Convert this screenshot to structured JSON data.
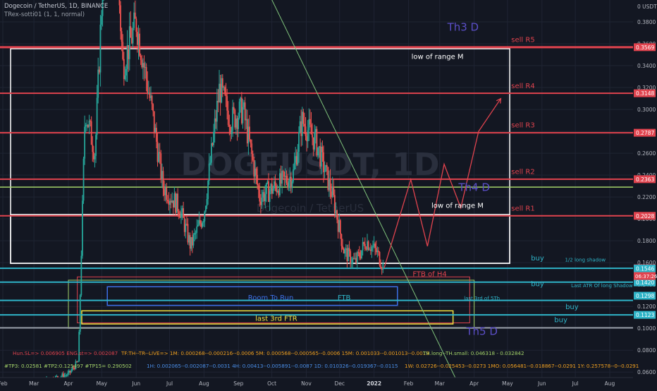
{
  "header": {
    "symbol_line": "Dogecoin / TetherUS, 1D, BINANCE",
    "indicator_line": "TRex-sotti01 (1, 1, normal)"
  },
  "watermark": {
    "big": "DOGEUSDT, 1D",
    "small": "Dogecoin / TetherUS"
  },
  "colors": {
    "background": "#131722",
    "grid": "#1f2433",
    "axis_text": "#b2b5be",
    "sell_line": "#e0434e",
    "buy_line": "#2fb4c8",
    "green_line": "#a4d46a",
    "gray_line": "#9aa0aa",
    "candle_up": "#26a69a",
    "candle_down": "#ef5350",
    "projection": "#e0434e",
    "trend_line": "#7fc27b"
  },
  "chart_data": {
    "type": "candlestick",
    "title": "Dogecoin / TetherUS, 1D, BINANCE",
    "currency": "USDT",
    "ylim": [
      0.055,
      0.4
    ],
    "y_ticks": [
      0.06,
      0.08,
      0.1,
      0.12,
      0.14,
      0.16,
      0.18,
      0.2,
      0.22,
      0.24,
      0.26,
      0.28,
      0.3,
      0.32,
      0.34,
      0.36,
      0.38
    ],
    "y_axis_top_label": "0 USDT",
    "x_ticks": [
      "Feb",
      "Mar",
      "Apr",
      "May",
      "Jun",
      "Jul",
      "Aug",
      "Sep",
      "Oct",
      "Nov",
      "Dec",
      "2022",
      "Feb",
      "Mar",
      "Apr",
      "May",
      "Jun",
      "Jul",
      "Aug"
    ],
    "x_tick_dates": [
      "2021-02-01",
      "2021-03-01",
      "2021-04-01",
      "2021-05-01",
      "2021-06-01",
      "2021-07-01",
      "2021-08-01",
      "2021-09-01",
      "2021-10-01",
      "2021-11-01",
      "2021-12-01",
      "2022-01-01",
      "2022-02-01",
      "2022-03-01",
      "2022-04-01",
      "2022-05-01",
      "2022-06-01",
      "2022-07-01",
      "2022-08-01"
    ],
    "price_path": [
      [
        "2021-02-01",
        0.032
      ],
      [
        "2021-03-01",
        0.05
      ],
      [
        "2021-04-01",
        0.058
      ],
      [
        "2021-04-10",
        0.07
      ],
      [
        "2021-04-16",
        0.3
      ],
      [
        "2021-04-25",
        0.26
      ],
      [
        "2021-05-08",
        0.56
      ],
      [
        "2021-05-20",
        0.34
      ],
      [
        "2021-06-01",
        0.38
      ],
      [
        "2021-06-15",
        0.3
      ],
      [
        "2021-06-25",
        0.23
      ],
      [
        "2021-07-10",
        0.21
      ],
      [
        "2021-07-20",
        0.175
      ],
      [
        "2021-08-01",
        0.205
      ],
      [
        "2021-08-15",
        0.32
      ],
      [
        "2021-08-25",
        0.29
      ],
      [
        "2021-09-05",
        0.3
      ],
      [
        "2021-09-20",
        0.22
      ],
      [
        "2021-10-05",
        0.23
      ],
      [
        "2021-10-20",
        0.24
      ],
      [
        "2021-10-28",
        0.29
      ],
      [
        "2021-11-10",
        0.27
      ],
      [
        "2021-11-25",
        0.22
      ],
      [
        "2021-12-05",
        0.17
      ],
      [
        "2021-12-15",
        0.16
      ],
      [
        "2021-12-25",
        0.18
      ],
      [
        "2022-01-03",
        0.17
      ],
      [
        "2022-01-10",
        0.155
      ]
    ],
    "projection_path": [
      [
        "2022-01-10",
        0.155
      ],
      [
        "2022-02-03",
        0.236
      ],
      [
        "2022-02-18",
        0.175
      ],
      [
        "2022-03-05",
        0.25
      ],
      [
        "2022-03-20",
        0.21
      ],
      [
        "2022-04-05",
        0.28
      ],
      [
        "2022-04-25",
        0.31
      ]
    ],
    "trend_line": [
      [
        "2021-09-12",
        0.44
      ],
      [
        "2022-03-15",
        0.055
      ]
    ],
    "price_labels": [
      {
        "value": 0.3569,
        "label": "0.3569",
        "color": "#e0434e"
      },
      {
        "value": 0.3148,
        "label": "0.3148",
        "color": "#e0434e"
      },
      {
        "value": 0.2787,
        "label": "0.2787",
        "color": "#e0434e"
      },
      {
        "value": 0.2363,
        "label": "0.2363",
        "color": "#e0434e"
      },
      {
        "value": 0.2028,
        "label": "0.2028",
        "color": "#e0434e"
      },
      {
        "value": 0.1549,
        "label": "0.1549",
        "color": "#e0434e"
      },
      {
        "value": 0.1546,
        "label": "0.1546",
        "color": "#2fb4c8"
      },
      {
        "value": 0.1423,
        "label": "0.1423",
        "color": "#2fb4c8"
      },
      {
        "value": 0.142,
        "label": "0.1420",
        "color": "#2fb4c8"
      },
      {
        "value": 0.1298,
        "label": "0.1298",
        "color": "#2fb4c8"
      },
      {
        "value": 0.1123,
        "label": "0.1123",
        "color": "#2fb4c8"
      }
    ],
    "countdown_label": "06:37:26",
    "h_lines": [
      {
        "value": 0.3569,
        "color": "#e0434e",
        "width": 3
      },
      {
        "value": 0.3148,
        "color": "#e0434e",
        "width": 2
      },
      {
        "value": 0.2787,
        "color": "#e0434e",
        "width": 2
      },
      {
        "value": 0.2363,
        "color": "#e0434e",
        "width": 2
      },
      {
        "value": 0.229,
        "color": "#a4d46a",
        "width": 1.5
      },
      {
        "value": 0.2028,
        "color": "#e0434e",
        "width": 2
      },
      {
        "value": 0.1549,
        "color": "#2fb4c8",
        "width": 2
      },
      {
        "value": 0.1422,
        "color": "#2fb4c8",
        "width": 2
      },
      {
        "value": 0.1255,
        "color": "#2fb4c8",
        "width": 2
      },
      {
        "value": 0.1123,
        "color": "#2fb4c8",
        "width": 2
      },
      {
        "value": 0.1005,
        "color": "#9aa0aa",
        "width": 2
      }
    ],
    "annotations": [
      {
        "text": "Th3 D",
        "date": "2022-03-22",
        "value": 0.372,
        "color": "#5b4fc8",
        "size": 15
      },
      {
        "text": "sell R5",
        "date": "2022-05-15",
        "value": 0.3615,
        "color": "#e0434e",
        "size": 10
      },
      {
        "text": "low of range M",
        "date": "2022-02-27",
        "value": 0.346,
        "color": "#ffffff",
        "size": 10
      },
      {
        "text": "sell R4",
        "date": "2022-05-15",
        "value": 0.3195,
        "color": "#e0434e",
        "size": 10
      },
      {
        "text": "sell R3",
        "date": "2022-05-15",
        "value": 0.2835,
        "color": "#e0434e",
        "size": 10
      },
      {
        "text": "sell R2",
        "date": "2022-05-15",
        "value": 0.241,
        "color": "#e0434e",
        "size": 10
      },
      {
        "text": "Th4 D",
        "date": "2022-04-01",
        "value": 0.2255,
        "color": "#5b4fc8",
        "size": 15
      },
      {
        "text": "low of range M",
        "date": "2022-03-17",
        "value": 0.21,
        "color": "#ffffff",
        "size": 10
      },
      {
        "text": "sell R1",
        "date": "2022-05-15",
        "value": 0.2075,
        "color": "#e0434e",
        "size": 10
      },
      {
        "text": "buy",
        "date": "2022-05-28",
        "value": 0.162,
        "color": "#2fb4c8",
        "size": 10
      },
      {
        "text": "1/2 long shadow",
        "date": "2022-07-10",
        "value": 0.161,
        "color": "#2fb4c8",
        "size": 7
      },
      {
        "text": "FTB of H4",
        "date": "2022-02-20",
        "value": 0.1475,
        "color": "#e0434e",
        "size": 10
      },
      {
        "text": "buy",
        "date": "2022-05-28",
        "value": 0.1385,
        "color": "#2fb4c8",
        "size": 10
      },
      {
        "text": "Last ATR Of long Shadow",
        "date": "2022-07-25",
        "value": 0.1375,
        "color": "#2fb4c8",
        "size": 7
      },
      {
        "text": "Room To Run",
        "date": "2021-09-30",
        "value": 0.126,
        "color": "#3d6fe6",
        "size": 10
      },
      {
        "text": "FTB",
        "date": "2021-12-05",
        "value": 0.126,
        "color": "#2fb4c8",
        "size": 10
      },
      {
        "text": "last 3rd of 5Th",
        "date": "2022-04-08",
        "value": 0.126,
        "color": "#2fb4c8",
        "size": 7
      },
      {
        "text": "buy",
        "date": "2022-06-28",
        "value": 0.1175,
        "color": "#2fb4c8",
        "size": 10
      },
      {
        "text": "last 3rd FTR",
        "date": "2021-10-05",
        "value": 0.107,
        "color": "#f0e040",
        "size": 10
      },
      {
        "text": "buy",
        "date": "2022-06-18",
        "value": 0.1055,
        "color": "#2fb4c8",
        "size": 10
      },
      {
        "text": "Th5 D",
        "date": "2022-04-08",
        "value": 0.094,
        "color": "#5b4fc8",
        "size": 15
      }
    ],
    "boxes": [
      {
        "name": "range-box-top",
        "x0": "2021-02-08",
        "x1": "2022-05-03",
        "y0": 0.3555,
        "y1": 0.1594,
        "color": "#ffffff",
        "width": 1.5
      },
      {
        "name": "range-box-bottom",
        "x0": "2021-02-08",
        "x1": "2022-05-03",
        "y0": 0.204,
        "y1": 0.1594,
        "color": "#ffffff",
        "width": 1.5
      },
      {
        "name": "zone-green-outer",
        "x0": "2021-04-01",
        "x1": "2022-04-01",
        "y0": 0.144,
        "y1": 0.1,
        "color": "#a4d46a",
        "width": 1
      },
      {
        "name": "zone-red-outer",
        "x0": "2021-04-09",
        "x1": "2022-03-28",
        "y0": 0.147,
        "y1": 0.105,
        "color": "#e0434e",
        "width": 1
      },
      {
        "name": "zone-blue-room",
        "x0": "2021-05-06",
        "x1": "2022-01-22",
        "y0": 0.138,
        "y1": 0.121,
        "color": "#3d6fe6",
        "width": 1.5
      },
      {
        "name": "zone-yellow-ftr",
        "x0": "2021-04-13",
        "x1": "2022-03-13",
        "y0": 0.116,
        "y1": 0.104,
        "color": "#f0e040",
        "width": 1.5
      }
    ],
    "bottom_rows": [
      [
        {
          "text": "Hun.SL=> 0.006905  ENG.st=> 0.002087",
          "color": "#e0434e"
        },
        {
          "text": "TF:TH--TR--LIVE=>  1M: 0.000268--0.000216--0.0006    5M: 0.000568--0.000565--0.0006    15M: 0.001033--0.001013--0.0019",
          "color": "#f0a020"
        },
        {
          "text": "TH.long--TH.small: 0.046318 - 0.032842",
          "color": "#a4d46a"
        }
      ],
      [
        {
          "text": "#TP3: 0.02581  #TP2:0.125497  #TP15= 0.290502",
          "color": "#a4d46a"
        },
        {
          "text": "1H: 0.002065--0.002087--0.0031    4H: 0.00413--0.005891--0.0087    1D: 0.010326--0.019367--0.0115",
          "color": "#4a8ee8"
        },
        {
          "text": "1W: 0.02726--0.025453--0.0273    1MO: 0.056481--0.018867--0.0291    1Y: 0.257578--0--0.0291",
          "color": "#f0a020"
        }
      ]
    ],
    "grid": true,
    "legend": "none"
  }
}
